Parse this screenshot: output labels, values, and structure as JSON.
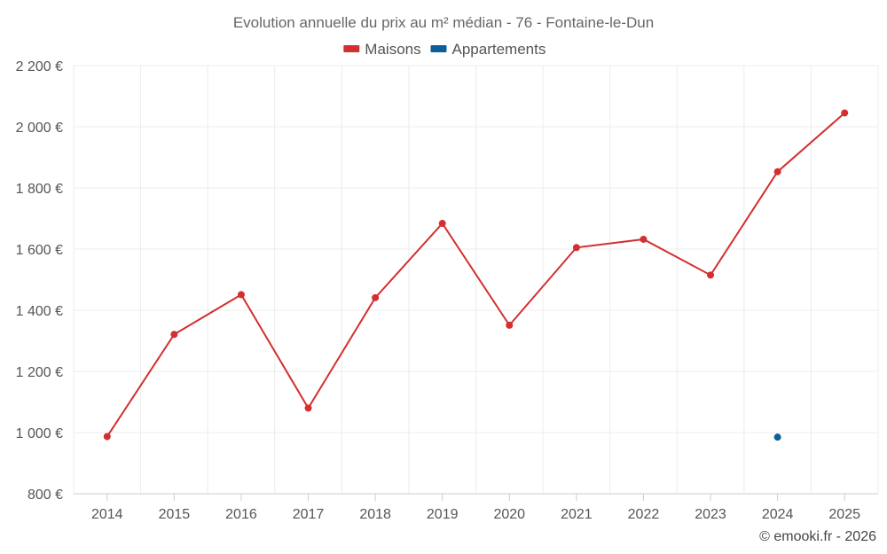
{
  "chart_data": {
    "type": "line",
    "title": "Evolution annuelle du prix au m² médian - 76 - Fontaine-le-Dun",
    "x": [
      "2014",
      "2015",
      "2016",
      "2017",
      "2018",
      "2019",
      "2020",
      "2021",
      "2022",
      "2023",
      "2024",
      "2025"
    ],
    "ylim": [
      800,
      2200
    ],
    "yticks": [
      800,
      1000,
      1200,
      1400,
      1600,
      1800,
      2000,
      2200
    ],
    "ytick_labels": [
      "800 €",
      "1 000 €",
      "1 200 €",
      "1 400 €",
      "1 600 €",
      "1 800 €",
      "2 000 €",
      "2 200 €"
    ],
    "grid": true,
    "legend_position": "top-center",
    "series": [
      {
        "name": "Maisons",
        "color": "#d32f2f",
        "values": [
          987,
          1321,
          1451,
          1080,
          1441,
          1684,
          1351,
          1605,
          1632,
          1515,
          1853,
          2045
        ]
      },
      {
        "name": "Appartements",
        "color": "#0d5f9a",
        "values": [
          null,
          null,
          null,
          null,
          null,
          null,
          null,
          null,
          null,
          null,
          985,
          null
        ]
      }
    ]
  },
  "credit": "© emooki.fr - 2026"
}
